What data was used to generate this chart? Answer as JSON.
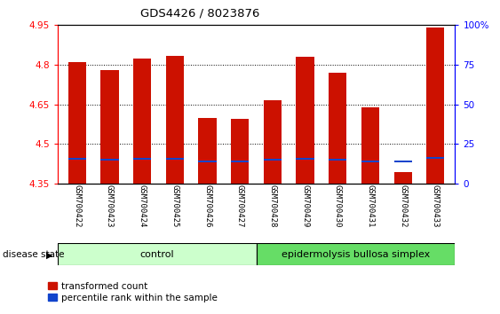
{
  "title": "GDS4426 / 8023876",
  "samples": [
    "GSM700422",
    "GSM700423",
    "GSM700424",
    "GSM700425",
    "GSM700426",
    "GSM700427",
    "GSM700428",
    "GSM700429",
    "GSM700430",
    "GSM700431",
    "GSM700432",
    "GSM700433"
  ],
  "red_values": [
    4.81,
    4.78,
    4.825,
    4.835,
    4.6,
    4.595,
    4.665,
    4.83,
    4.77,
    4.64,
    4.395,
    4.94
  ],
  "blue_values": [
    4.445,
    4.44,
    4.445,
    4.445,
    4.435,
    4.435,
    4.44,
    4.445,
    4.44,
    4.435,
    4.435,
    4.447
  ],
  "y_min": 4.35,
  "y_max": 4.95,
  "y_ticks_left": [
    4.35,
    4.5,
    4.65,
    4.8,
    4.95
  ],
  "y_ticks_right": [
    0,
    25,
    50,
    75,
    100
  ],
  "bar_width": 0.55,
  "red_color": "#cc1100",
  "blue_color": "#1144cc",
  "grid_color": "black",
  "background_plot": "#ffffff",
  "control_samples": 6,
  "control_label": "control",
  "disease_label": "epidermolysis bullosa simplex",
  "disease_state_label": "disease state",
  "legend_red": "transformed count",
  "legend_blue": "percentile rank within the sample",
  "control_bg": "#ccffcc",
  "disease_bg": "#66dd66",
  "xlabel_bg": "#d3d3d3",
  "blue_bar_height": 0.008
}
